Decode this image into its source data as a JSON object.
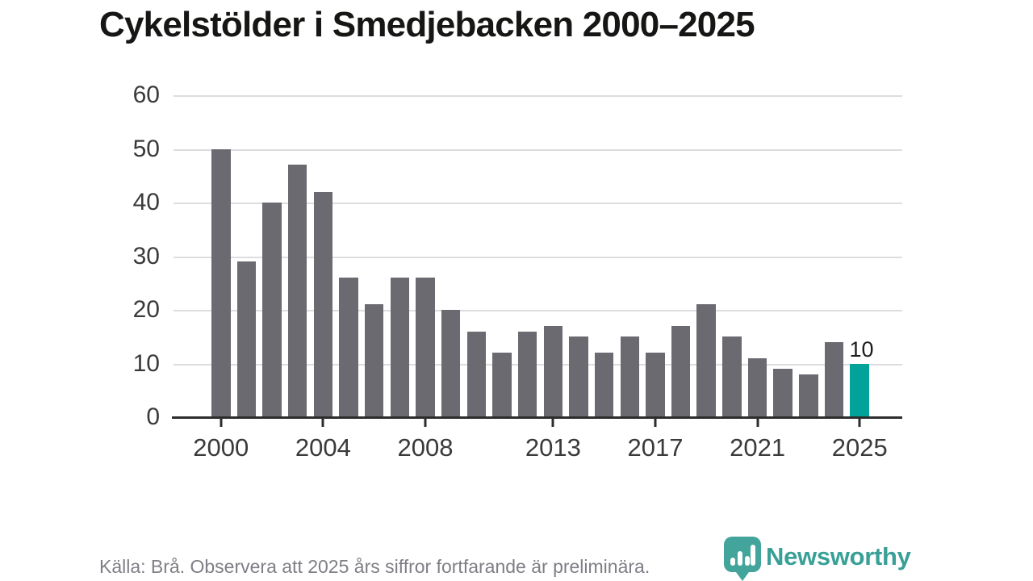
{
  "title": "Cykelstölder i Smedjebacken 2000–2025",
  "chart_data": {
    "type": "bar",
    "x": [
      2000,
      2001,
      2002,
      2003,
      2004,
      2005,
      2006,
      2007,
      2008,
      2009,
      2010,
      2011,
      2012,
      2013,
      2014,
      2015,
      2016,
      2017,
      2018,
      2019,
      2020,
      2021,
      2022,
      2023,
      2024,
      2025
    ],
    "values": [
      50,
      29,
      40,
      47,
      42,
      26,
      21,
      26,
      26,
      20,
      16,
      12,
      16,
      17,
      15,
      12,
      15,
      12,
      17,
      21,
      15,
      11,
      9,
      8,
      14,
      10
    ],
    "title": "Cykelstölder i Smedjebacken 2000–2025",
    "xlabel": "",
    "ylabel": "",
    "ylim": [
      0,
      60
    ],
    "yticks": [
      0,
      10,
      20,
      30,
      40,
      50,
      60
    ],
    "xticks": [
      2000,
      2004,
      2008,
      2013,
      2017,
      2021,
      2025
    ],
    "grid": true,
    "legend": "none",
    "bar_color": "#6b6a71",
    "highlight_year": 2025,
    "highlight_color": "#00a29a",
    "highlight_value_label": "10"
  },
  "footer": {
    "source_note": "Källa: Brå. Observera att 2025 års siffror fortfarande är preliminära."
  },
  "branding": {
    "logo_text": "Newsworthy",
    "logo_color": "#38a096",
    "logo_icon": "newsworthy-pin-barchart-icon"
  }
}
